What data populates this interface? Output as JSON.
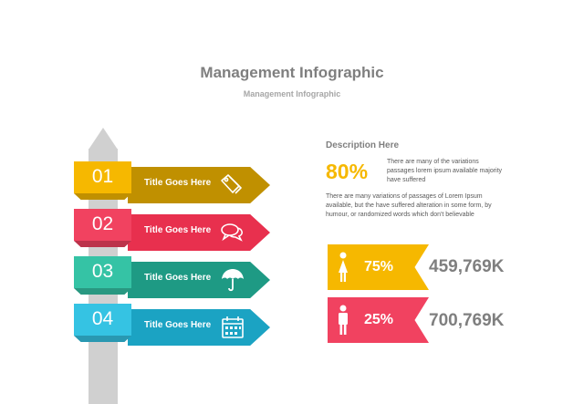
{
  "header": {
    "title": "Management Infographic",
    "subtitle": "Management Infographic"
  },
  "steps": [
    {
      "number": "01",
      "label": "Title Goes Here",
      "icon": "tag-icon",
      "arrow_color": "#c09000",
      "box_color": "#f6b800"
    },
    {
      "number": "02",
      "label": "Title Goes Here",
      "icon": "speech-bubbles-icon",
      "arrow_color": "#e8304e",
      "box_color": "#f14260"
    },
    {
      "number": "03",
      "label": "Title Goes Here",
      "icon": "umbrella-icon",
      "arrow_color": "#1e9a84",
      "box_color": "#35c3a5"
    },
    {
      "number": "04",
      "label": "Title Goes Here",
      "icon": "calendar-icon",
      "arrow_color": "#1ba3c3",
      "box_color": "#35c3e3"
    }
  ],
  "description": {
    "title": "Description Here",
    "percent": "80%",
    "short_text": "There are many of the variations passages lorem ipsum available majority have suffered",
    "paragraph": "There are many variations of passages  of Lorem Ipsum available, but the have suffered alteration in some  form, by humour, or randomized words  which  don't believable"
  },
  "stats": [
    {
      "icon": "woman-icon",
      "percent": "75%",
      "value": "459,769K",
      "color": "#f6b800"
    },
    {
      "icon": "man-icon",
      "percent": "25%",
      "value": "700,769K",
      "color": "#f14260"
    }
  ]
}
